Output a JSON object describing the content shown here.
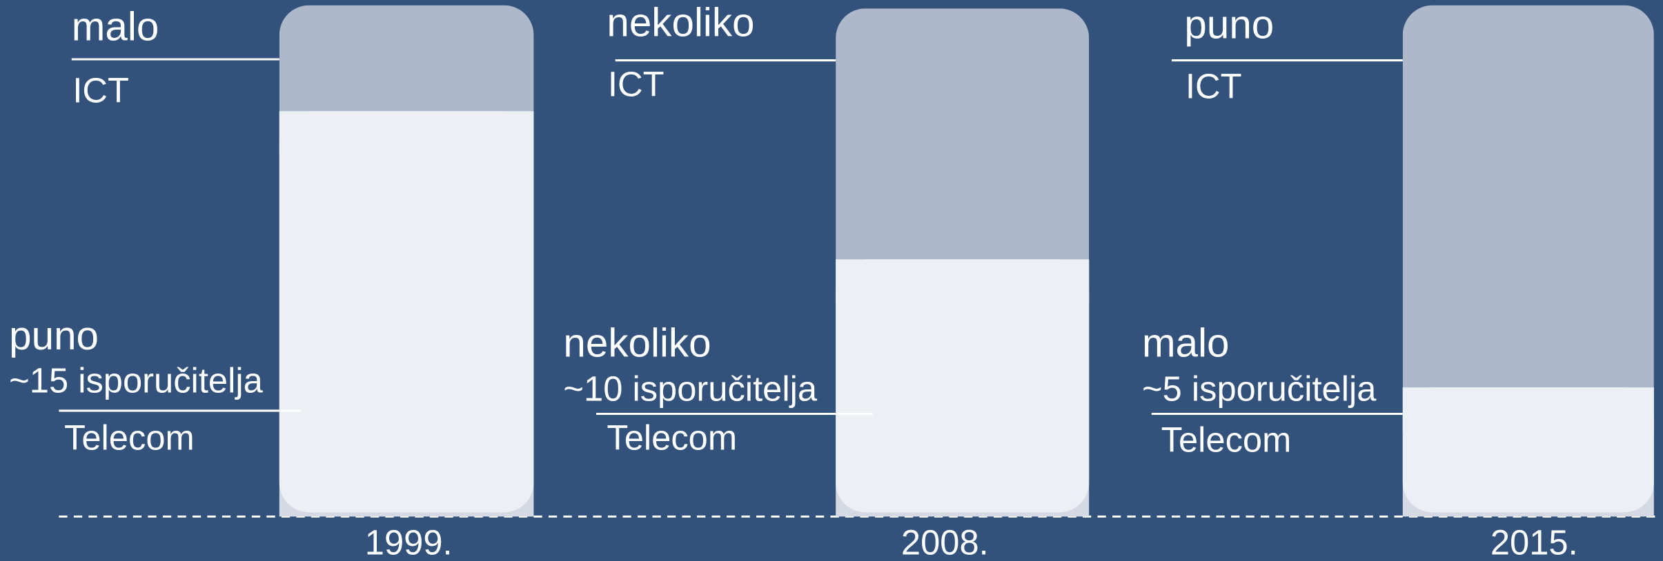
{
  "columns": [
    {
      "ict_level": "malo",
      "ict_label": "ICT",
      "telecom_level": "puno",
      "suppliers": "~15 isporučitelja",
      "telecom_label": "Telecom",
      "year": "1999."
    },
    {
      "ict_level": "nekoliko",
      "ict_label": "ICT",
      "telecom_level": "nekoliko",
      "suppliers": "~10 isporučitelja",
      "telecom_label": "Telecom",
      "year": "2008."
    },
    {
      "ict_level": "puno",
      "ict_label": "ICT",
      "telecom_level": "malo",
      "suppliers": "~5 isporučitelja",
      "telecom_label": "Telecom",
      "year": "2015."
    }
  ]
}
